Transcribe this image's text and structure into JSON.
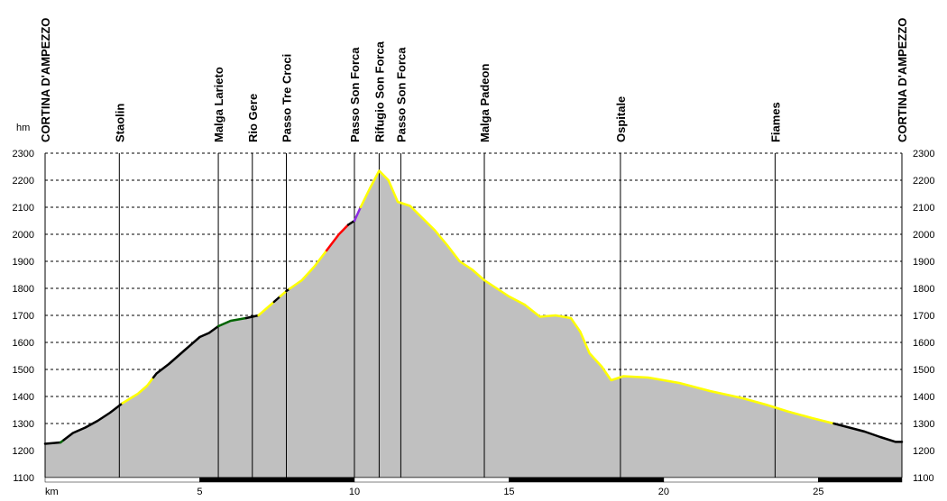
{
  "chart_data": {
    "type": "area",
    "title": "",
    "xlabel": "km",
    "ylabel": "hm",
    "xlim": [
      0,
      27.7
    ],
    "ylim": [
      1100,
      2300
    ],
    "x_ticks": [
      5,
      10,
      15,
      20,
      25
    ],
    "y_ticks": [
      1100,
      1200,
      1300,
      1400,
      1500,
      1600,
      1700,
      1800,
      1900,
      2000,
      2100,
      2200,
      2300
    ],
    "grid": true,
    "colors": {
      "fill": "#c0c0c0",
      "black": "#000000",
      "green": "#006400",
      "yellow": "#ffff00",
      "red": "#ff0000",
      "purple": "#8b2be2",
      "grid": "#000000"
    },
    "waypoints": [
      {
        "name": "CORTINA D'AMPEZZO",
        "km": 0
      },
      {
        "name": "Staolin",
        "km": 2.4
      },
      {
        "name": "Malga Larieto",
        "km": 5.6
      },
      {
        "name": "Rio Gere",
        "km": 6.7
      },
      {
        "name": "Passo Tre Croci",
        "km": 7.8
      },
      {
        "name": "Passo Son Forca",
        "km": 10.0
      },
      {
        "name": "Rifugio Son Forca",
        "km": 10.8
      },
      {
        "name": "Passo Son Forca",
        "km": 11.5
      },
      {
        "name": "Malga Padeon",
        "km": 14.2
      },
      {
        "name": "Ospitale",
        "km": 18.6
      },
      {
        "name": "Fiames",
        "km": 23.6
      },
      {
        "name": "CORTINA D'AMPEZZO",
        "km": 27.7
      }
    ],
    "profile": [
      [
        0,
        1225
      ],
      [
        0.5,
        1230
      ],
      [
        0.9,
        1265
      ],
      [
        1.3,
        1285
      ],
      [
        1.7,
        1310
      ],
      [
        2.1,
        1340
      ],
      [
        2.5,
        1375
      ],
      [
        3.0,
        1410
      ],
      [
        3.3,
        1440
      ],
      [
        3.6,
        1485
      ],
      [
        4.0,
        1520
      ],
      [
        4.5,
        1570
      ],
      [
        5.0,
        1620
      ],
      [
        5.3,
        1635
      ],
      [
        5.6,
        1660
      ],
      [
        6.0,
        1680
      ],
      [
        6.5,
        1690
      ],
      [
        6.9,
        1700
      ],
      [
        7.3,
        1740
      ],
      [
        7.8,
        1790
      ],
      [
        8.3,
        1830
      ],
      [
        8.7,
        1880
      ],
      [
        9.1,
        1940
      ],
      [
        9.5,
        2000
      ],
      [
        9.8,
        2035
      ],
      [
        10.0,
        2050
      ],
      [
        10.2,
        2100
      ],
      [
        10.5,
        2170
      ],
      [
        10.8,
        2235
      ],
      [
        11.1,
        2200
      ],
      [
        11.4,
        2120
      ],
      [
        11.8,
        2105
      ],
      [
        12.2,
        2060
      ],
      [
        12.6,
        2015
      ],
      [
        13.0,
        1960
      ],
      [
        13.4,
        1900
      ],
      [
        13.8,
        1870
      ],
      [
        14.2,
        1830
      ],
      [
        14.6,
        1800
      ],
      [
        15.0,
        1770
      ],
      [
        15.5,
        1740
      ],
      [
        16.0,
        1695
      ],
      [
        16.5,
        1700
      ],
      [
        17.0,
        1690
      ],
      [
        17.3,
        1640
      ],
      [
        17.6,
        1560
      ],
      [
        18.0,
        1510
      ],
      [
        18.3,
        1460
      ],
      [
        18.7,
        1475
      ],
      [
        19.5,
        1470
      ],
      [
        20.5,
        1450
      ],
      [
        21.5,
        1420
      ],
      [
        22.5,
        1395
      ],
      [
        23.3,
        1370
      ],
      [
        24.0,
        1345
      ],
      [
        24.8,
        1320
      ],
      [
        25.5,
        1300
      ],
      [
        26.0,
        1285
      ],
      [
        26.5,
        1270
      ],
      [
        27.0,
        1250
      ],
      [
        27.5,
        1232
      ],
      [
        27.7,
        1232
      ]
    ],
    "segments": [
      {
        "from": 0,
        "to": 0.5,
        "color": "black"
      },
      {
        "from": 0.5,
        "to": 0.6,
        "color": "green"
      },
      {
        "from": 0.6,
        "to": 2.5,
        "color": "black"
      },
      {
        "from": 2.5,
        "to": 3.5,
        "color": "yellow"
      },
      {
        "from": 3.5,
        "to": 5.6,
        "color": "black"
      },
      {
        "from": 5.6,
        "to": 6.5,
        "color": "green"
      },
      {
        "from": 6.5,
        "to": 6.9,
        "color": "black"
      },
      {
        "from": 6.9,
        "to": 7.4,
        "color": "yellow"
      },
      {
        "from": 7.4,
        "to": 7.6,
        "color": "black"
      },
      {
        "from": 7.6,
        "to": 7.8,
        "color": "yellow"
      },
      {
        "from": 7.8,
        "to": 7.9,
        "color": "black"
      },
      {
        "from": 7.9,
        "to": 9.1,
        "color": "yellow"
      },
      {
        "from": 9.1,
        "to": 9.8,
        "color": "red"
      },
      {
        "from": 9.8,
        "to": 10.0,
        "color": "black"
      },
      {
        "from": 10.0,
        "to": 10.2,
        "color": "purple"
      },
      {
        "from": 10.2,
        "to": 25.5,
        "color": "yellow"
      },
      {
        "from": 25.5,
        "to": 27.7,
        "color": "black"
      }
    ]
  }
}
